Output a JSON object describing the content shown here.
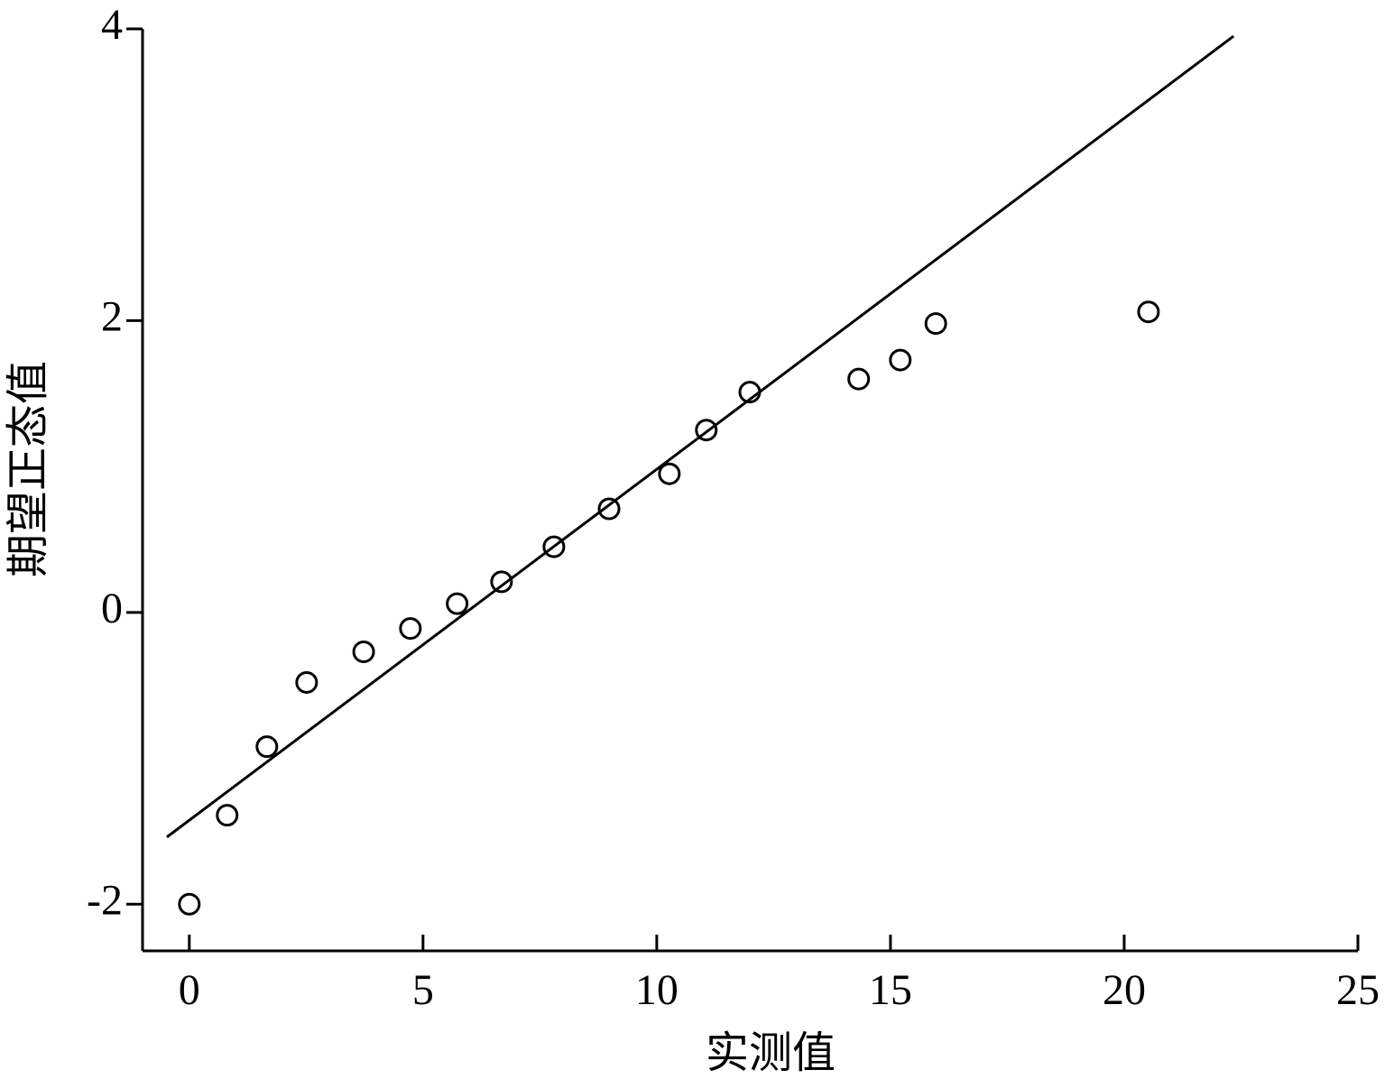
{
  "chart_data": {
    "type": "scatter",
    "x_label": "实测值",
    "y_label": "期望正态值",
    "x": [
      0,
      0.81,
      1.66,
      2.51,
      3.73,
      4.73,
      5.73,
      6.68,
      7.8,
      8.98,
      10.27,
      11.06,
      11.99,
      14.32,
      15.21,
      15.97,
      20.52
    ],
    "values": [
      -2.0,
      -1.39,
      -0.92,
      -0.48,
      -0.27,
      -0.11,
      0.06,
      0.21,
      0.45,
      0.71,
      0.95,
      1.25,
      1.51,
      1.6,
      1.73,
      1.98,
      2.06
    ],
    "color": "#000000",
    "reference_line": {
      "x": [
        -0.48,
        22.34
      ],
      "values": [
        -1.54,
        3.95
      ],
      "color": "#000000"
    },
    "xlim": [
      -1,
      25
    ],
    "xticks": [
      0,
      5,
      10,
      15,
      20,
      25
    ],
    "ylim": [
      -2.32,
      4
    ],
    "yticks": [
      -2,
      0,
      2,
      4
    ]
  }
}
